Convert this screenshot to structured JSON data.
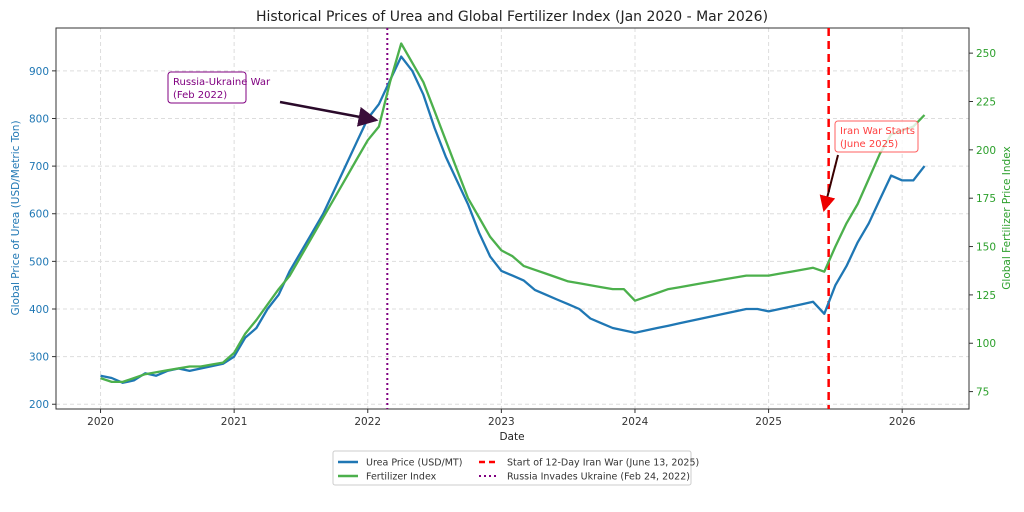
{
  "chart_data": {
    "type": "line",
    "title": "Historical Prices of Urea and Global Fertilizer Index (Jan 2020 - Mar 2026)",
    "xlabel": "Date",
    "ylabel": "Global Price of Urea (USD/Metric Ton)",
    "y2label": "Global Fertilizer Price Index",
    "x_ticks": [
      "2020",
      "2021",
      "2022",
      "2023",
      "2024",
      "2025",
      "2026"
    ],
    "y_ticks": [
      200,
      300,
      400,
      500,
      600,
      700,
      800,
      900
    ],
    "y2_ticks": [
      75,
      100,
      125,
      150,
      175,
      200,
      225,
      250
    ],
    "xlim": [
      "2019-09",
      "2026-07"
    ],
    "ylim": [
      190,
      990
    ],
    "y2lim": [
      66,
      263
    ],
    "grid": true,
    "legend_placement": "bottom-center",
    "x": [
      "2020-01",
      "2020-02",
      "2020-03",
      "2020-04",
      "2020-05",
      "2020-06",
      "2020-07",
      "2020-08",
      "2020-09",
      "2020-10",
      "2020-11",
      "2020-12",
      "2021-01",
      "2021-02",
      "2021-03",
      "2021-04",
      "2021-05",
      "2021-06",
      "2021-07",
      "2021-08",
      "2021-09",
      "2021-10",
      "2021-11",
      "2021-12",
      "2022-01",
      "2022-02",
      "2022-03",
      "2022-04",
      "2022-05",
      "2022-06",
      "2022-07",
      "2022-08",
      "2022-09",
      "2022-10",
      "2022-11",
      "2022-12",
      "2023-01",
      "2023-02",
      "2023-03",
      "2023-04",
      "2023-05",
      "2023-06",
      "2023-07",
      "2023-08",
      "2023-09",
      "2023-10",
      "2023-11",
      "2023-12",
      "2024-01",
      "2024-02",
      "2024-03",
      "2024-04",
      "2024-05",
      "2024-06",
      "2024-07",
      "2024-08",
      "2024-09",
      "2024-10",
      "2024-11",
      "2024-12",
      "2025-01",
      "2025-02",
      "2025-03",
      "2025-04",
      "2025-05",
      "2025-06",
      "2025-07",
      "2025-08",
      "2025-09",
      "2025-10",
      "2025-11",
      "2025-12",
      "2026-01",
      "2026-02",
      "2026-03"
    ],
    "series": [
      {
        "name": "Urea Price (USD/MT)",
        "axis": "left",
        "color": "#1f77b4",
        "values": [
          260,
          255,
          245,
          250,
          265,
          260,
          270,
          275,
          270,
          275,
          280,
          285,
          300,
          340,
          360,
          400,
          430,
          480,
          520,
          560,
          600,
          650,
          700,
          750,
          800,
          830,
          880,
          930,
          900,
          850,
          780,
          720,
          670,
          620,
          560,
          510,
          480,
          470,
          460,
          440,
          430,
          420,
          410,
          400,
          380,
          370,
          360,
          355,
          350,
          355,
          360,
          365,
          370,
          375,
          380,
          385,
          390,
          395,
          400,
          400,
          395,
          400,
          405,
          410,
          415,
          390,
          450,
          490,
          540,
          580,
          630,
          680,
          670,
          670,
          700
        ]
      },
      {
        "name": "Fertilizer Index",
        "axis": "right",
        "color": "#4cb04c",
        "values": [
          82,
          80,
          80,
          82,
          84,
          85,
          86,
          87,
          88,
          88,
          89,
          90,
          95,
          105,
          112,
          120,
          128,
          135,
          145,
          155,
          165,
          175,
          185,
          195,
          205,
          212,
          235,
          255,
          245,
          235,
          220,
          205,
          190,
          175,
          165,
          155,
          148,
          145,
          140,
          138,
          136,
          134,
          132,
          131,
          130,
          129,
          128,
          128,
          122,
          124,
          126,
          128,
          129,
          130,
          131,
          132,
          133,
          134,
          135,
          135,
          135,
          136,
          137,
          138,
          139,
          137,
          150,
          162,
          172,
          185,
          198,
          208,
          210,
          212,
          218
        ]
      }
    ],
    "events": [
      {
        "name": "Start of 12-Day Iran War (June 13, 2025)",
        "date": "2025-06-13",
        "color": "#ff0000",
        "style": "dashed"
      },
      {
        "name": "Russia Invades Ukraine (Feb 24, 2022)",
        "date": "2022-02-24",
        "color": "#800080",
        "style": "dotted"
      }
    ],
    "annotations": [
      {
        "line1": "Russia-Ukraine War",
        "line2": "(Feb 2022)",
        "color": "#800080"
      },
      {
        "line1": "Iran War Starts",
        "line2": "(June 2025)",
        "color": "#ff0000"
      }
    ]
  }
}
